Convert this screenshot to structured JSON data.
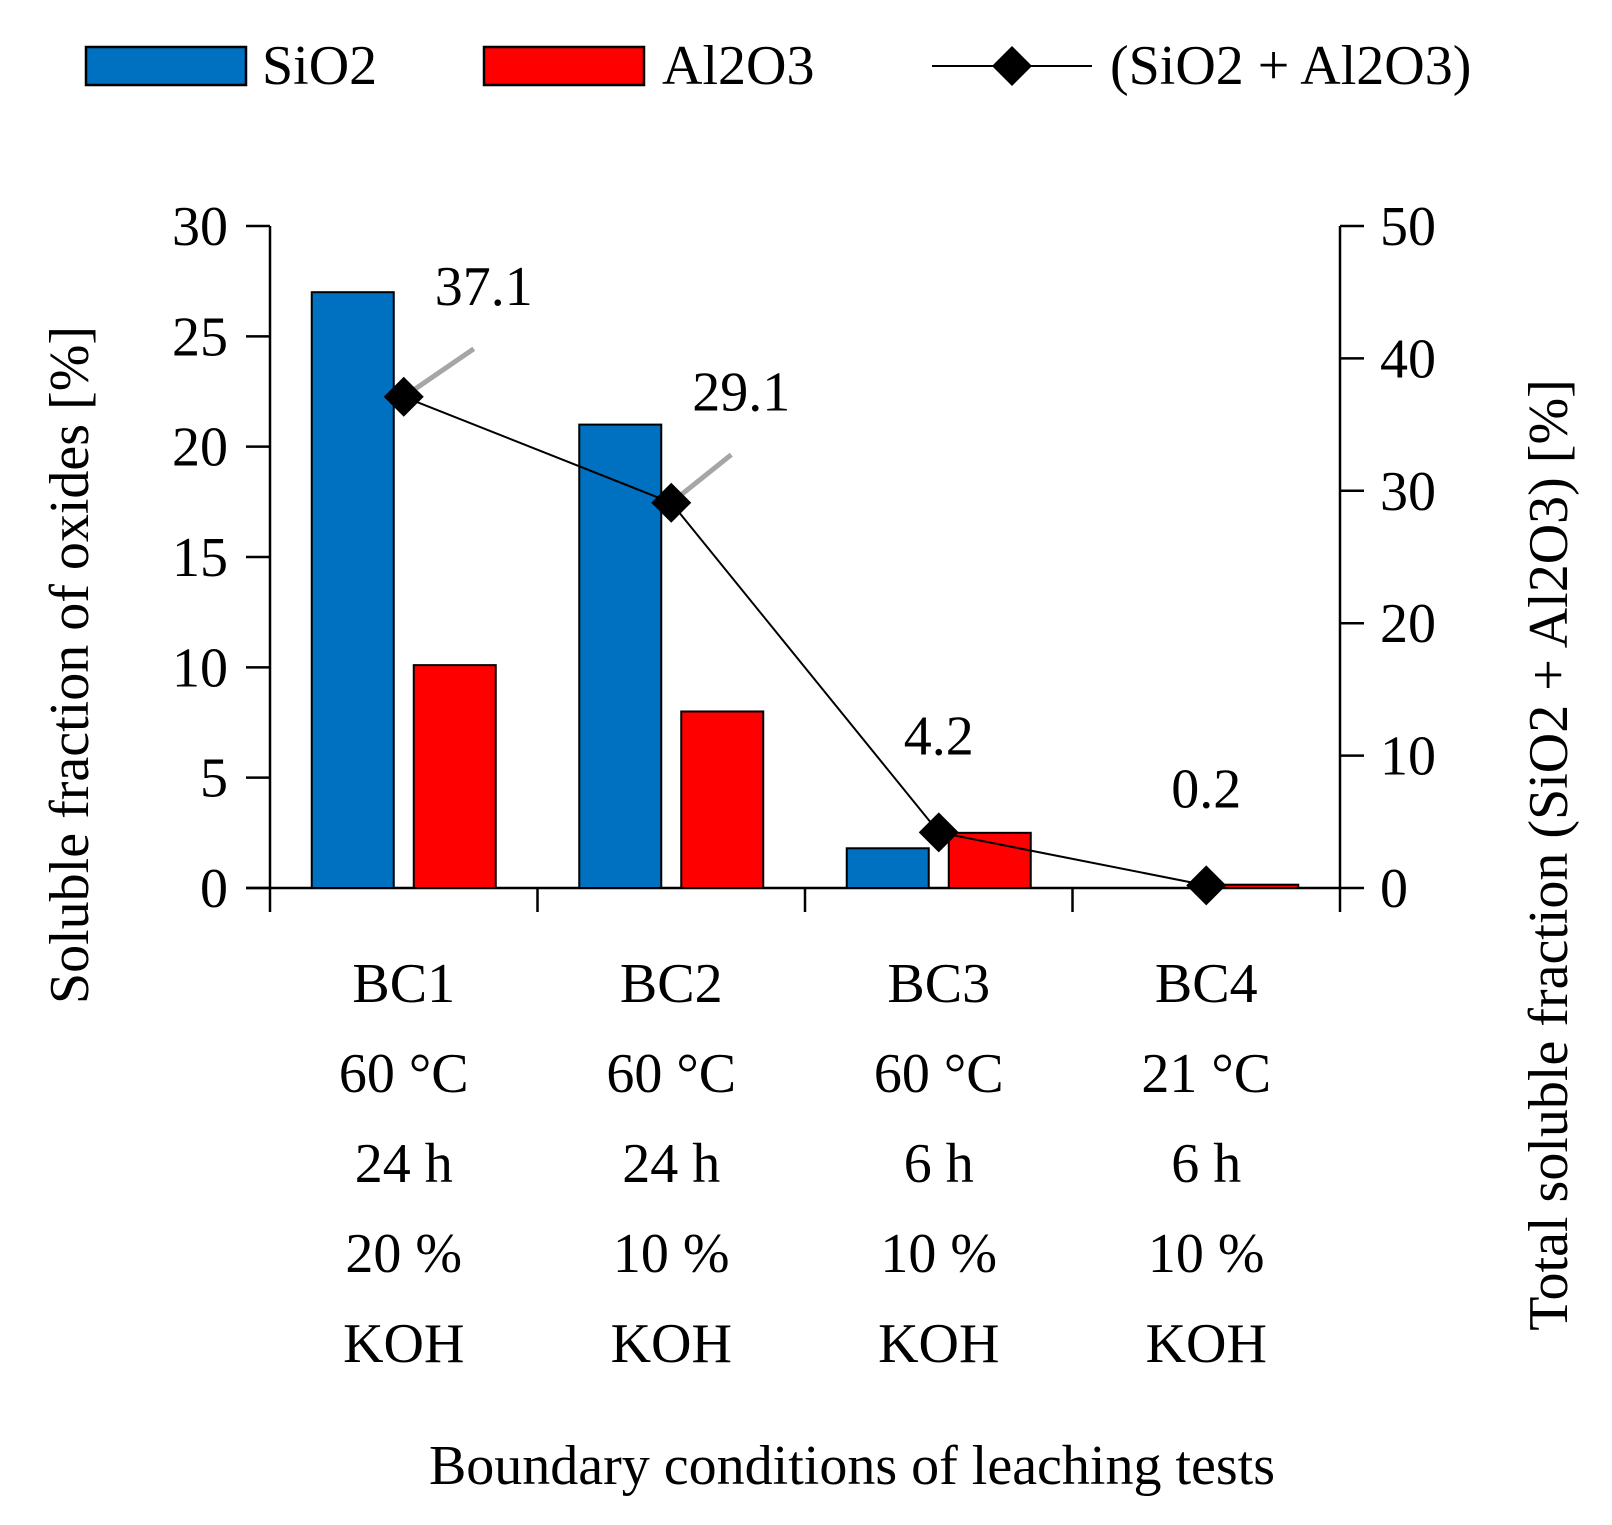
{
  "chart_data": {
    "type": "bar",
    "categories": [
      [
        "BC1",
        "60 °C",
        "24 h",
        "20 %",
        "KOH"
      ],
      [
        "BC2",
        "60 °C",
        "24 h",
        "10 %",
        "KOH"
      ],
      [
        "BC3",
        "60 °C",
        "6 h",
        "10 %",
        "KOH"
      ],
      [
        "BC4",
        "21 °C",
        "6 h",
        "10 %",
        "KOH"
      ]
    ],
    "series": [
      {
        "name": "SiO2",
        "type": "bar",
        "axis": "left",
        "color": "#0070c0",
        "values": [
          27.0,
          21.0,
          1.8,
          0.0
        ]
      },
      {
        "name": "Al2O3",
        "type": "bar",
        "axis": "left",
        "color": "#ff0000",
        "values": [
          10.1,
          8.0,
          2.5,
          0.15
        ]
      },
      {
        "name": "(SiO2 + Al2O3)",
        "type": "line",
        "axis": "right",
        "color": "#000000",
        "marker": "diamond",
        "values": [
          37.1,
          29.1,
          4.2,
          0.2
        ],
        "data_labels": [
          "37.1",
          "29.1",
          "4.2",
          "0.2"
        ]
      }
    ],
    "y_left": {
      "label": "Soluble fraction of oxides [%]",
      "lim": [
        0,
        30
      ],
      "ticks": [
        0,
        5,
        10,
        15,
        20,
        25,
        30
      ]
    },
    "y_right": {
      "label": "Total soluble fraction (SiO2 + Al2O3) [%]",
      "lim": [
        0,
        50
      ],
      "ticks": [
        0,
        10,
        20,
        30,
        40,
        50
      ]
    },
    "xlabel": "Boundary conditions of leaching tests",
    "legend": "top",
    "grid": false
  }
}
